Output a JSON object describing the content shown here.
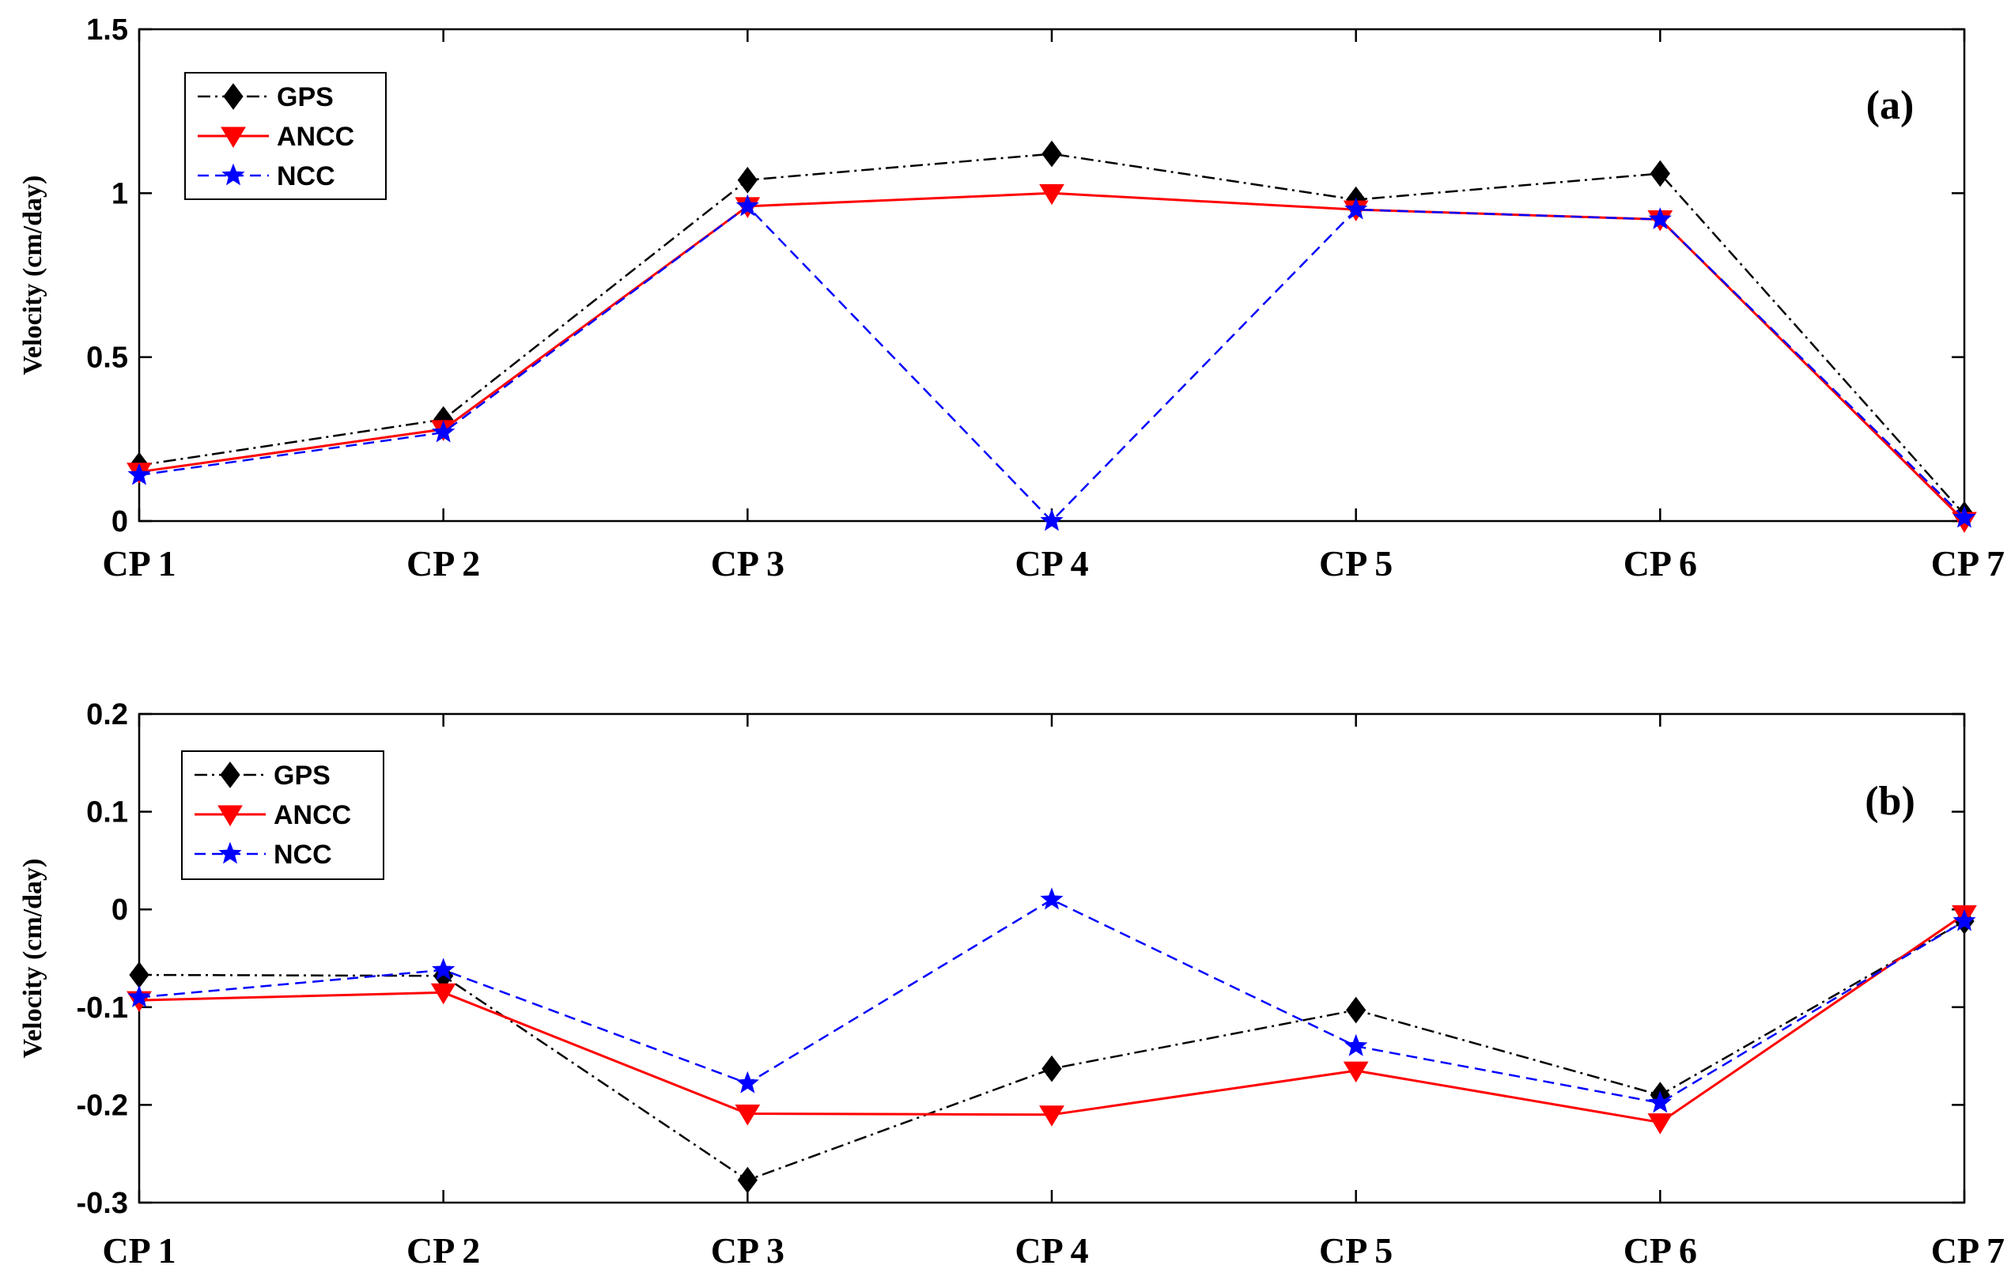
{
  "colors": {
    "GPS": "#000000",
    "ANCC": "#ff0000",
    "NCC": "#0000ff"
  },
  "chart_data": [
    {
      "type": "line",
      "panel_label": "(a)",
      "ylabel": "Velocity (cm/day)",
      "xlabel": "",
      "categories": [
        "CP 1",
        "CP 2",
        "CP 3",
        "CP 4",
        "CP 5",
        "CP 6",
        "CP 7"
      ],
      "ylim": [
        0,
        1.5
      ],
      "yticks": [
        0,
        0.5,
        1,
        1.5
      ],
      "ytick_labels": [
        "0",
        "0.5",
        "1",
        "1.5"
      ],
      "legend_position": "top-left",
      "series": [
        {
          "name": "GPS",
          "style": "dash-dot",
          "marker": "diamond",
          "values": [
            0.17,
            0.31,
            1.04,
            1.12,
            0.98,
            1.06,
            0.02
          ]
        },
        {
          "name": "ANCC",
          "style": "solid",
          "marker": "triangle-down",
          "values": [
            0.15,
            0.28,
            0.96,
            1.0,
            0.95,
            0.92,
            0.0
          ]
        },
        {
          "name": "NCC",
          "style": "dashed",
          "marker": "star",
          "values": [
            0.14,
            0.27,
            0.96,
            0.0,
            0.95,
            0.92,
            0.01
          ]
        }
      ]
    },
    {
      "type": "line",
      "panel_label": "(b)",
      "ylabel": "Velocity (cm/day)",
      "xlabel": "",
      "categories": [
        "CP 1",
        "CP 2",
        "CP 3",
        "CP 4",
        "CP 5",
        "CP 6",
        "CP 7"
      ],
      "ylim": [
        -0.3,
        0.2
      ],
      "yticks": [
        -0.3,
        -0.2,
        -0.1,
        0,
        0.1,
        0.2
      ],
      "ytick_labels": [
        "-0.3",
        "-0.2",
        "-0.1",
        "0",
        "0.1",
        "0.2"
      ],
      "legend_position": "top-left",
      "series": [
        {
          "name": "GPS",
          "style": "dash-dot",
          "marker": "diamond",
          "values": [
            -0.067,
            -0.068,
            -0.277,
            -0.163,
            -0.103,
            -0.19,
            -0.012
          ]
        },
        {
          "name": "ANCC",
          "style": "solid",
          "marker": "triangle-down",
          "values": [
            -0.093,
            -0.085,
            -0.209,
            -0.21,
            -0.165,
            -0.218,
            -0.005
          ]
        },
        {
          "name": "NCC",
          "style": "dashed",
          "marker": "star",
          "values": [
            -0.09,
            -0.062,
            -0.178,
            0.01,
            -0.14,
            -0.198,
            -0.012
          ]
        }
      ]
    }
  ]
}
